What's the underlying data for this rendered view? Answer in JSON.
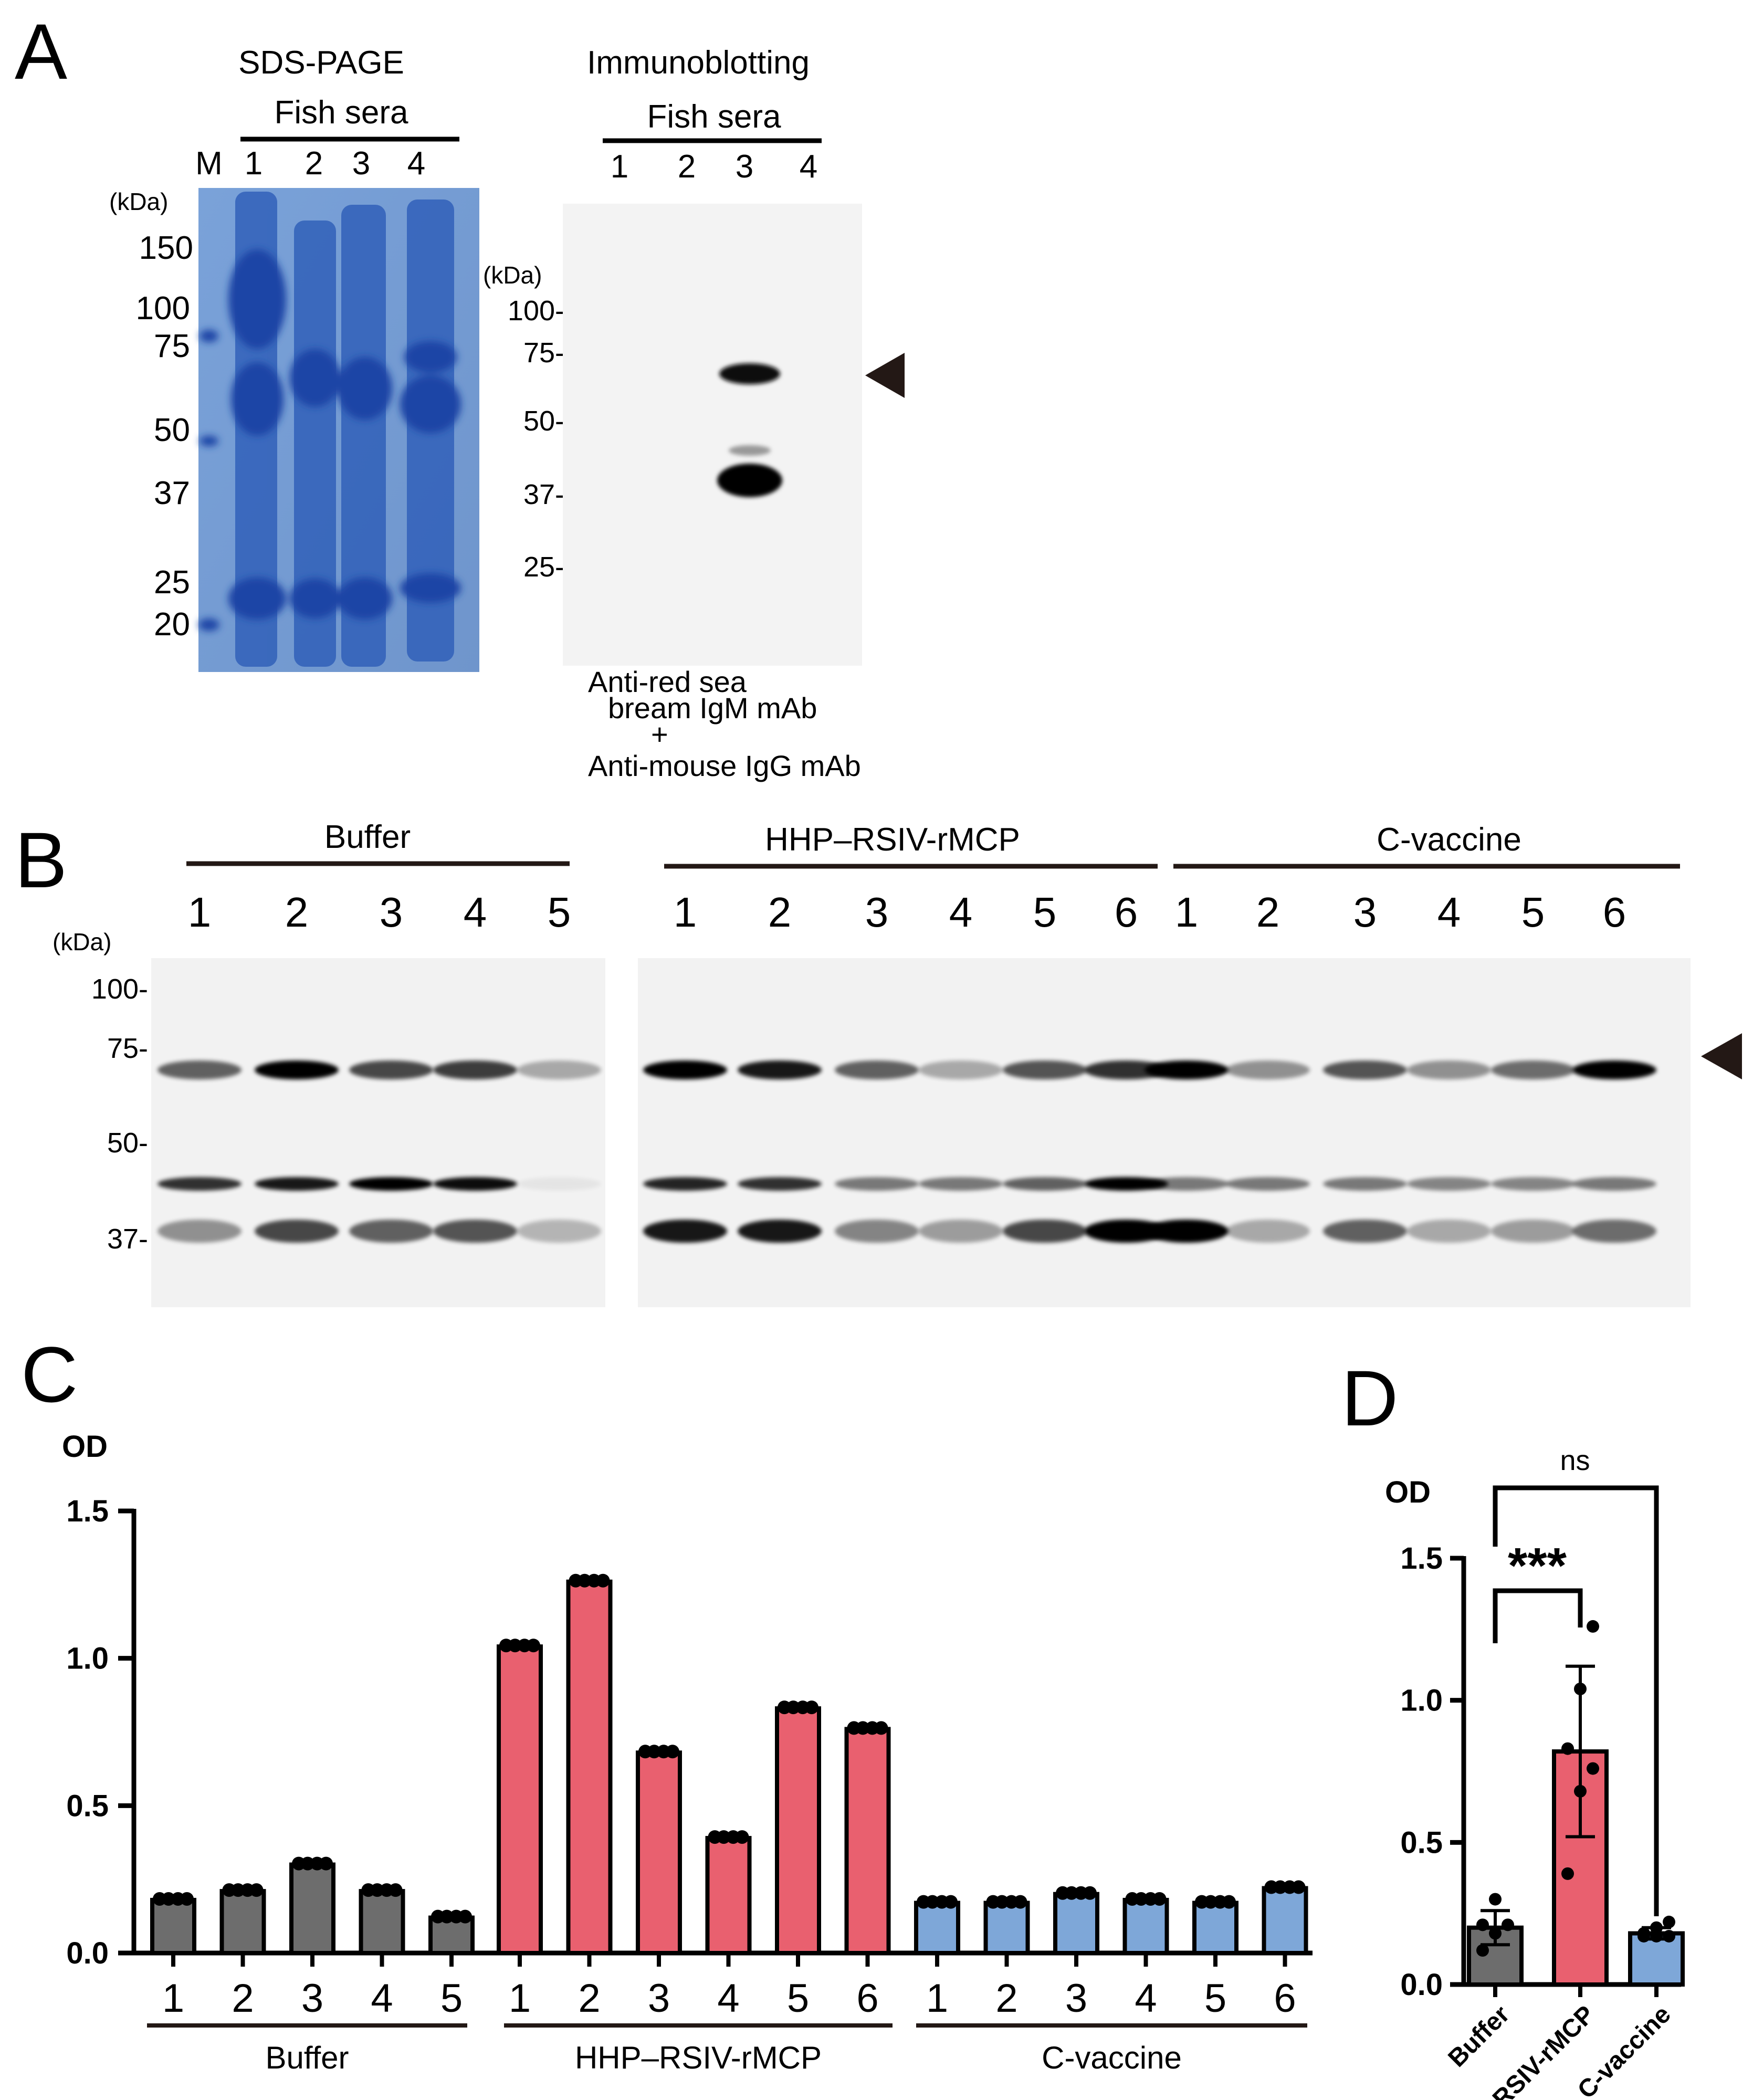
{
  "panels": {
    "A": {
      "letter": "A",
      "sds": {
        "title": "SDS-PAGE",
        "group": "Fish sera",
        "lanes": [
          "M",
          "1",
          "2",
          "3",
          "4"
        ],
        "unit": "(kDa)",
        "markers": [
          "150",
          "100",
          "75",
          "50",
          "37",
          "25",
          "20"
        ]
      },
      "ib": {
        "title": "Immunoblotting",
        "group": "Fish sera",
        "lanes": [
          "1",
          "2",
          "3",
          "4"
        ],
        "unit": "(kDa)",
        "markers": [
          "100-",
          "75-",
          "50-",
          "37-",
          "25-"
        ],
        "antibody": [
          "Anti-red sea",
          "bream IgM mAb",
          "+",
          "Anti-mouse IgG mAb"
        ]
      }
    },
    "B": {
      "letter": "B",
      "unit": "(kDa)",
      "markers": [
        "100-",
        "75-",
        "50-",
        "37-"
      ],
      "groups": [
        {
          "name": "Buffer",
          "lanes": [
            "1",
            "2",
            "3",
            "4",
            "5"
          ]
        },
        {
          "name": "HHP–RSIV-rMCP",
          "lanes": [
            "1",
            "2",
            "3",
            "4",
            "5",
            "6"
          ]
        },
        {
          "name": "C-vaccine",
          "lanes": [
            "1",
            "2",
            "3",
            "4",
            "5",
            "6"
          ]
        }
      ]
    },
    "C": {
      "letter": "C"
    },
    "D": {
      "letter": "D"
    }
  },
  "chart_data": [
    {
      "type": "bar",
      "panel": "C",
      "ylabel": "OD",
      "ylim": [
        0,
        1.5
      ],
      "yticks": [
        "0.0",
        "0.5",
        "1.0",
        "1.5"
      ],
      "groups": [
        {
          "name": "Buffer",
          "color": "#6d6d6d",
          "categories": [
            "1",
            "2",
            "3",
            "4",
            "5"
          ],
          "values": [
            0.18,
            0.21,
            0.3,
            0.21,
            0.12
          ]
        },
        {
          "name": "HHP–RSIV-rMCP",
          "color": "#e9606f",
          "categories": [
            "1",
            "2",
            "3",
            "4",
            "5",
            "6"
          ],
          "values": [
            1.04,
            1.26,
            0.68,
            0.39,
            0.83,
            0.76
          ]
        },
        {
          "name": "C-vaccine",
          "color": "#7ea7d8",
          "categories": [
            "1",
            "2",
            "3",
            "4",
            "5",
            "6"
          ],
          "values": [
            0.17,
            0.17,
            0.2,
            0.18,
            0.17,
            0.22
          ]
        }
      ]
    },
    {
      "type": "bar",
      "panel": "D",
      "ylabel": "OD",
      "ylim": [
        0,
        1.5
      ],
      "yticks": [
        "0.0",
        "0.5",
        "1.0",
        "1.5"
      ],
      "categories": [
        "Buffer",
        "HHP–RSIV-rMCP",
        "C-vaccine"
      ],
      "colors": [
        "#6d6d6d",
        "#e9606f",
        "#7ea7d8"
      ],
      "values": [
        0.2,
        0.82,
        0.18
      ],
      "sd": [
        0.06,
        0.3,
        0.02
      ],
      "points": [
        [
          0.18,
          0.21,
          0.3,
          0.21,
          0.12
        ],
        [
          1.04,
          1.26,
          0.68,
          0.39,
          0.83,
          0.76
        ],
        [
          0.17,
          0.17,
          0.2,
          0.18,
          0.17,
          0.22
        ]
      ],
      "comparisons": [
        {
          "pair": [
            "Buffer",
            "HHP–RSIV-rMCP"
          ],
          "label": "***"
        },
        {
          "pair": [
            "Buffer",
            "C-vaccine"
          ],
          "label": "ns"
        }
      ]
    }
  ]
}
